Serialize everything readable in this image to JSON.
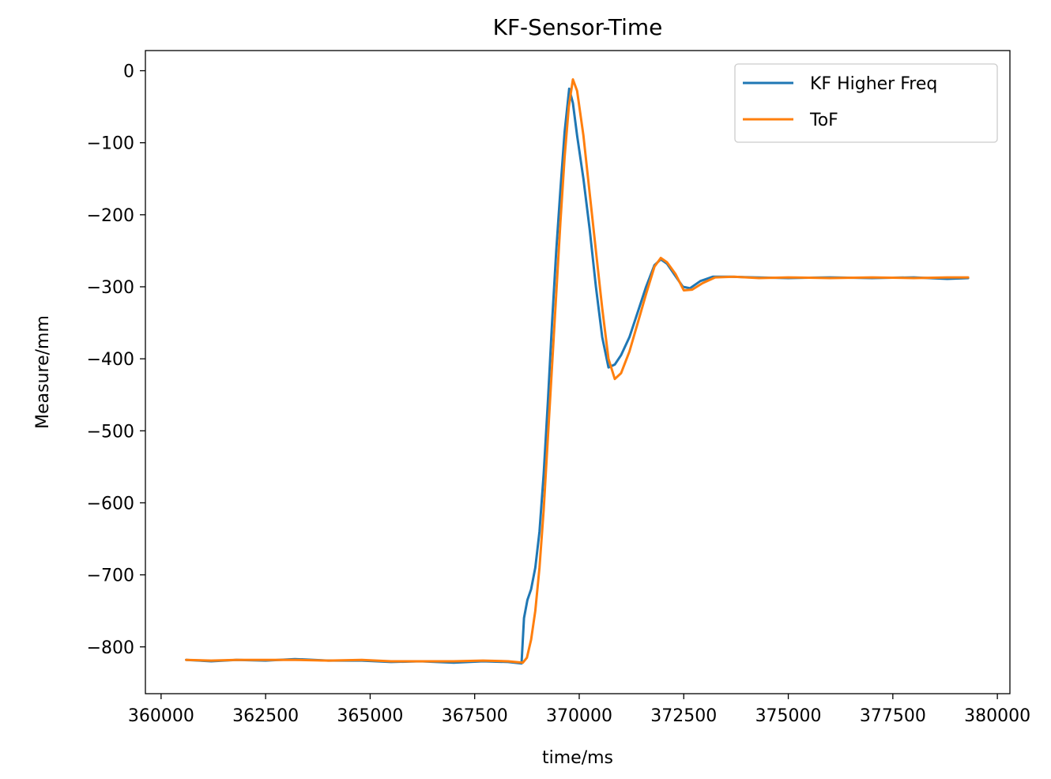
{
  "chart_data": {
    "type": "line",
    "title": "KF-Sensor-Time",
    "xlabel": "time/ms",
    "ylabel": "Measure/mm",
    "xlim": [
      359625,
      380300
    ],
    "ylim": [
      -865,
      28
    ],
    "xticks": [
      360000,
      362500,
      365000,
      367500,
      370000,
      372500,
      375000,
      377500,
      380000
    ],
    "xtick_labels": [
      "360000",
      "362500",
      "365000",
      "367500",
      "370000",
      "372500",
      "375000",
      "377500",
      "380000"
    ],
    "yticks": [
      0,
      -100,
      -200,
      -300,
      -400,
      -500,
      -600,
      -700,
      -800
    ],
    "ytick_labels": [
      "0",
      "−100",
      "−200",
      "−300",
      "−400",
      "−500",
      "−600",
      "−700",
      "−800"
    ],
    "grid": false,
    "legend_position": "top-right",
    "series": [
      {
        "name": "KF Higher Freq",
        "color": "#1f77b4",
        "points": [
          [
            360600,
            -818
          ],
          [
            361200,
            -820
          ],
          [
            361800,
            -818
          ],
          [
            362500,
            -819
          ],
          [
            363200,
            -817
          ],
          [
            364000,
            -819
          ],
          [
            364800,
            -819
          ],
          [
            365500,
            -821
          ],
          [
            366200,
            -820
          ],
          [
            367000,
            -822
          ],
          [
            367700,
            -820
          ],
          [
            368300,
            -821
          ],
          [
            368620,
            -823
          ],
          [
            368680,
            -760
          ],
          [
            368760,
            -735
          ],
          [
            368850,
            -720
          ],
          [
            368950,
            -690
          ],
          [
            369050,
            -640
          ],
          [
            369150,
            -560
          ],
          [
            369250,
            -460
          ],
          [
            369350,
            -350
          ],
          [
            369450,
            -250
          ],
          [
            369550,
            -165
          ],
          [
            369650,
            -85
          ],
          [
            369760,
            -25
          ],
          [
            369850,
            -45
          ],
          [
            369950,
            -90
          ],
          [
            370100,
            -150
          ],
          [
            370250,
            -220
          ],
          [
            370400,
            -300
          ],
          [
            370550,
            -370
          ],
          [
            370700,
            -412
          ],
          [
            370850,
            -408
          ],
          [
            371000,
            -395
          ],
          [
            371200,
            -370
          ],
          [
            371400,
            -335
          ],
          [
            371600,
            -300
          ],
          [
            371800,
            -270
          ],
          [
            371950,
            -262
          ],
          [
            372100,
            -268
          ],
          [
            372300,
            -285
          ],
          [
            372480,
            -300
          ],
          [
            372650,
            -302
          ],
          [
            372900,
            -292
          ],
          [
            373200,
            -286
          ],
          [
            373600,
            -286
          ],
          [
            374200,
            -287
          ],
          [
            375000,
            -288
          ],
          [
            376000,
            -287
          ],
          [
            377000,
            -288
          ],
          [
            378000,
            -287
          ],
          [
            378800,
            -289
          ],
          [
            379300,
            -288
          ]
        ]
      },
      {
        "name": "ToF",
        "color": "#ff7f0e",
        "points": [
          [
            360600,
            -818
          ],
          [
            361200,
            -819
          ],
          [
            361800,
            -818
          ],
          [
            362500,
            -818
          ],
          [
            363200,
            -818
          ],
          [
            364000,
            -819
          ],
          [
            364800,
            -818
          ],
          [
            365500,
            -820
          ],
          [
            366200,
            -820
          ],
          [
            367000,
            -820
          ],
          [
            367700,
            -819
          ],
          [
            368300,
            -820
          ],
          [
            368650,
            -822
          ],
          [
            368750,
            -815
          ],
          [
            368850,
            -790
          ],
          [
            368950,
            -750
          ],
          [
            369050,
            -690
          ],
          [
            369150,
            -610
          ],
          [
            369250,
            -510
          ],
          [
            369350,
            -410
          ],
          [
            369450,
            -310
          ],
          [
            369550,
            -210
          ],
          [
            369650,
            -120
          ],
          [
            369750,
            -50
          ],
          [
            369850,
            -12
          ],
          [
            369950,
            -28
          ],
          [
            370100,
            -90
          ],
          [
            370250,
            -170
          ],
          [
            370400,
            -250
          ],
          [
            370550,
            -330
          ],
          [
            370700,
            -400
          ],
          [
            370850,
            -428
          ],
          [
            371000,
            -420
          ],
          [
            371200,
            -390
          ],
          [
            371400,
            -350
          ],
          [
            371600,
            -310
          ],
          [
            371800,
            -272
          ],
          [
            371950,
            -260
          ],
          [
            372100,
            -266
          ],
          [
            372300,
            -282
          ],
          [
            372500,
            -305
          ],
          [
            372700,
            -304
          ],
          [
            372950,
            -295
          ],
          [
            373250,
            -287
          ],
          [
            373700,
            -286
          ],
          [
            374300,
            -288
          ],
          [
            375000,
            -287
          ],
          [
            376000,
            -288
          ],
          [
            377000,
            -287
          ],
          [
            378000,
            -288
          ],
          [
            378800,
            -287
          ],
          [
            379300,
            -287
          ]
        ]
      }
    ]
  }
}
